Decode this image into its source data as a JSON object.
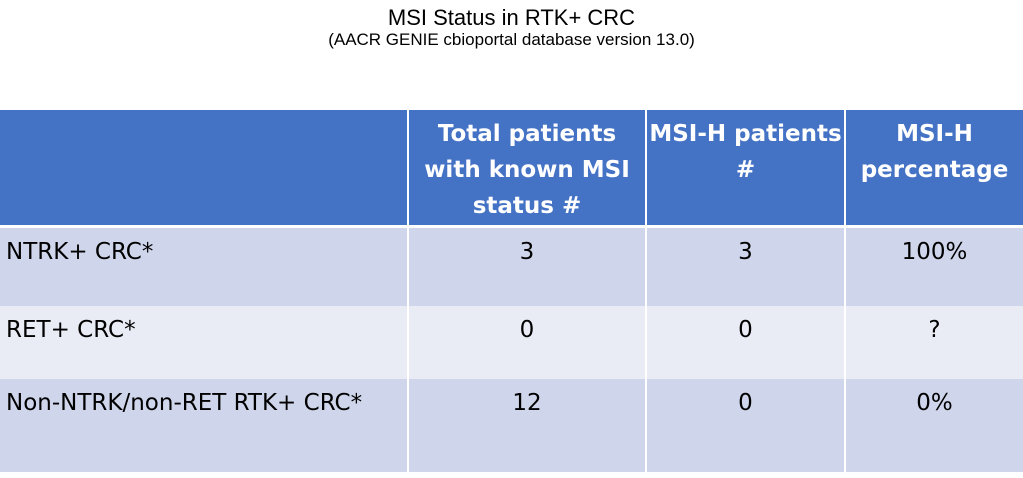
{
  "title": "MSI Status in RTK+ CRC",
  "subtitle": "(AACR GENIE cbioportal database version 13.0)",
  "table": {
    "headers": [
      "",
      "Total patients with known MSI status #",
      "MSI-H patients #",
      "MSI-H percentage"
    ],
    "rows": [
      [
        "NTRK+ CRC*",
        "3",
        "3",
        "100%"
      ],
      [
        "RET+ CRC*",
        "0",
        "0",
        "?"
      ],
      [
        "Non-NTRK/non-RET RTK+ CRC*",
        "12",
        "0",
        "0%"
      ]
    ]
  },
  "colors": {
    "header_bg": "#4472c4",
    "row_dark": "#cfd5ea",
    "row_light": "#e9ebf5"
  }
}
